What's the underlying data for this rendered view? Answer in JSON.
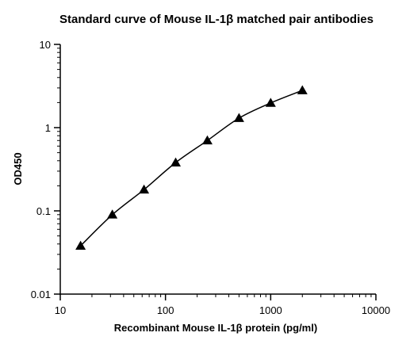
{
  "chart_data": {
    "type": "scatter",
    "title": "Standard curve of Mouse IL-1β matched pair antibodies",
    "xlabel": "Recombinant Mouse IL-1β protein (pg/ml)",
    "ylabel": "OD450",
    "x_scale": "log",
    "y_scale": "log",
    "xlim": [
      10,
      10000
    ],
    "ylim": [
      0.01,
      10
    ],
    "x_ticks": [
      "10",
      "100",
      "1000",
      "10000"
    ],
    "y_ticks": [
      "0.01",
      "0.1",
      "1",
      "10"
    ],
    "grid": false,
    "legend": "none",
    "marker": "triangle",
    "color": "#000000",
    "series": [
      {
        "x": [
          15.6,
          31.25,
          62.5,
          125,
          250,
          500,
          1000,
          2000
        ],
        "y": [
          0.038,
          0.09,
          0.18,
          0.38,
          0.7,
          1.3,
          1.98,
          2.8
        ]
      }
    ]
  }
}
